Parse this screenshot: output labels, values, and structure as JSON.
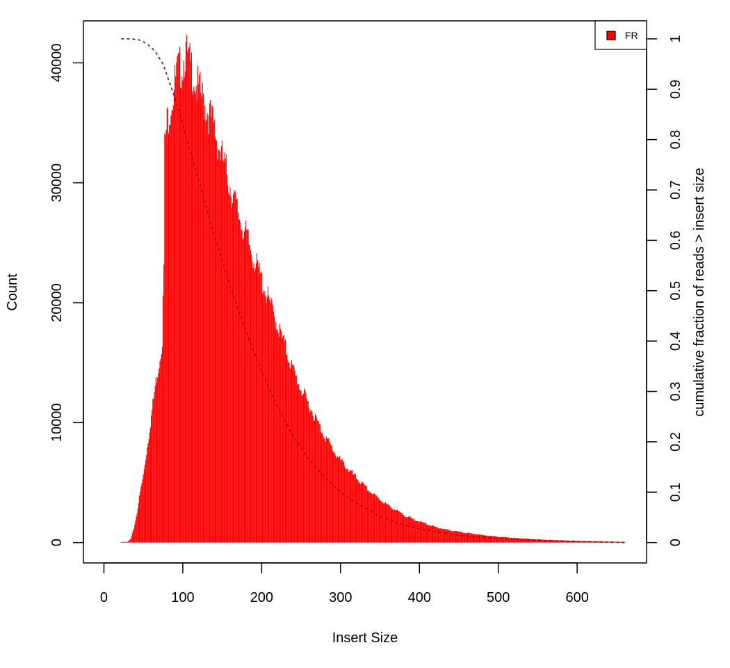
{
  "chart_data": {
    "type": "bar",
    "title": "",
    "xlabel": "Insert Size",
    "ylabel": "Count",
    "y2label": "cumulative fraction of reads > insert size",
    "xlim": [
      -26,
      688
    ],
    "ylim": [
      -1700,
      43500
    ],
    "y2lim": [
      0,
      1
    ],
    "xticks": [
      "0",
      "100",
      "200",
      "300",
      "400",
      "500",
      "600"
    ],
    "yticks": [
      "0",
      "10000",
      "20000",
      "30000",
      "40000"
    ],
    "y2ticks": [
      "0",
      "0.1",
      "0.2",
      "0.3",
      "0.4",
      "0.5",
      "0.6",
      "0.7",
      "0.8",
      "0.9",
      "1"
    ],
    "grid": false,
    "legend": {
      "position": "top-right",
      "entries": [
        "FR"
      ]
    },
    "series": [
      {
        "name": "FR",
        "color": "#ff0000",
        "histogram_points": [
          [
            22,
            0
          ],
          [
            30,
            50
          ],
          [
            34,
            300
          ],
          [
            38,
            1200
          ],
          [
            42,
            2500
          ],
          [
            46,
            4200
          ],
          [
            50,
            5600
          ],
          [
            55,
            8000
          ],
          [
            60,
            10500
          ],
          [
            65,
            13000
          ],
          [
            70,
            15000
          ],
          [
            74,
            17000
          ],
          [
            76,
            23000
          ],
          [
            77,
            33000
          ],
          [
            80,
            35000
          ],
          [
            84,
            36500
          ],
          [
            88,
            37500
          ],
          [
            92,
            39000
          ],
          [
            96,
            39500
          ],
          [
            100,
            40000
          ],
          [
            103,
            41000
          ],
          [
            107,
            40000
          ],
          [
            112,
            39500
          ],
          [
            118,
            38000
          ],
          [
            125,
            37000
          ],
          [
            132,
            36000
          ],
          [
            140,
            34500
          ],
          [
            148,
            32500
          ],
          [
            155,
            31000
          ],
          [
            163,
            29000
          ],
          [
            170,
            27500
          ],
          [
            178,
            26000
          ],
          [
            186,
            24500
          ],
          [
            194,
            23000
          ],
          [
            202,
            21500
          ],
          [
            210,
            20000
          ],
          [
            218,
            18500
          ],
          [
            226,
            17000
          ],
          [
            234,
            15500
          ],
          [
            242,
            14000
          ],
          [
            250,
            12800
          ],
          [
            258,
            11700
          ],
          [
            266,
            10700
          ],
          [
            274,
            9600
          ],
          [
            282,
            8700
          ],
          [
            290,
            7800
          ],
          [
            298,
            7000
          ],
          [
            310,
            6100
          ],
          [
            320,
            5400
          ],
          [
            330,
            4700
          ],
          [
            340,
            4100
          ],
          [
            350,
            3600
          ],
          [
            360,
            3100
          ],
          [
            370,
            2700
          ],
          [
            380,
            2300
          ],
          [
            390,
            2000
          ],
          [
            400,
            1750
          ],
          [
            420,
            1300
          ],
          [
            440,
            1000
          ],
          [
            460,
            800
          ],
          [
            480,
            620
          ],
          [
            500,
            480
          ],
          [
            520,
            380
          ],
          [
            540,
            300
          ],
          [
            560,
            230
          ],
          [
            580,
            180
          ],
          [
            600,
            140
          ],
          [
            620,
            110
          ],
          [
            640,
            80
          ],
          [
            660,
            60
          ]
        ]
      },
      {
        "name": "cumulative fraction of reads > insert size",
        "color": "#8b0000",
        "axis": "right",
        "style": "dashed",
        "points": [
          [
            22,
            1.0
          ],
          [
            35,
            1.0
          ],
          [
            45,
            0.998
          ],
          [
            55,
            0.99
          ],
          [
            65,
            0.975
          ],
          [
            75,
            0.95
          ],
          [
            85,
            0.905
          ],
          [
            95,
            0.86
          ],
          [
            105,
            0.8
          ],
          [
            120,
            0.72
          ],
          [
            140,
            0.61
          ],
          [
            160,
            0.51
          ],
          [
            180,
            0.42
          ],
          [
            200,
            0.34
          ],
          [
            220,
            0.27
          ],
          [
            240,
            0.21
          ],
          [
            260,
            0.165
          ],
          [
            280,
            0.13
          ],
          [
            300,
            0.1
          ],
          [
            320,
            0.078
          ],
          [
            350,
            0.052
          ],
          [
            380,
            0.035
          ],
          [
            400,
            0.027
          ],
          [
            450,
            0.014
          ],
          [
            500,
            0.008
          ],
          [
            550,
            0.004
          ],
          [
            600,
            0.002
          ],
          [
            660,
            0.0
          ]
        ]
      }
    ]
  }
}
